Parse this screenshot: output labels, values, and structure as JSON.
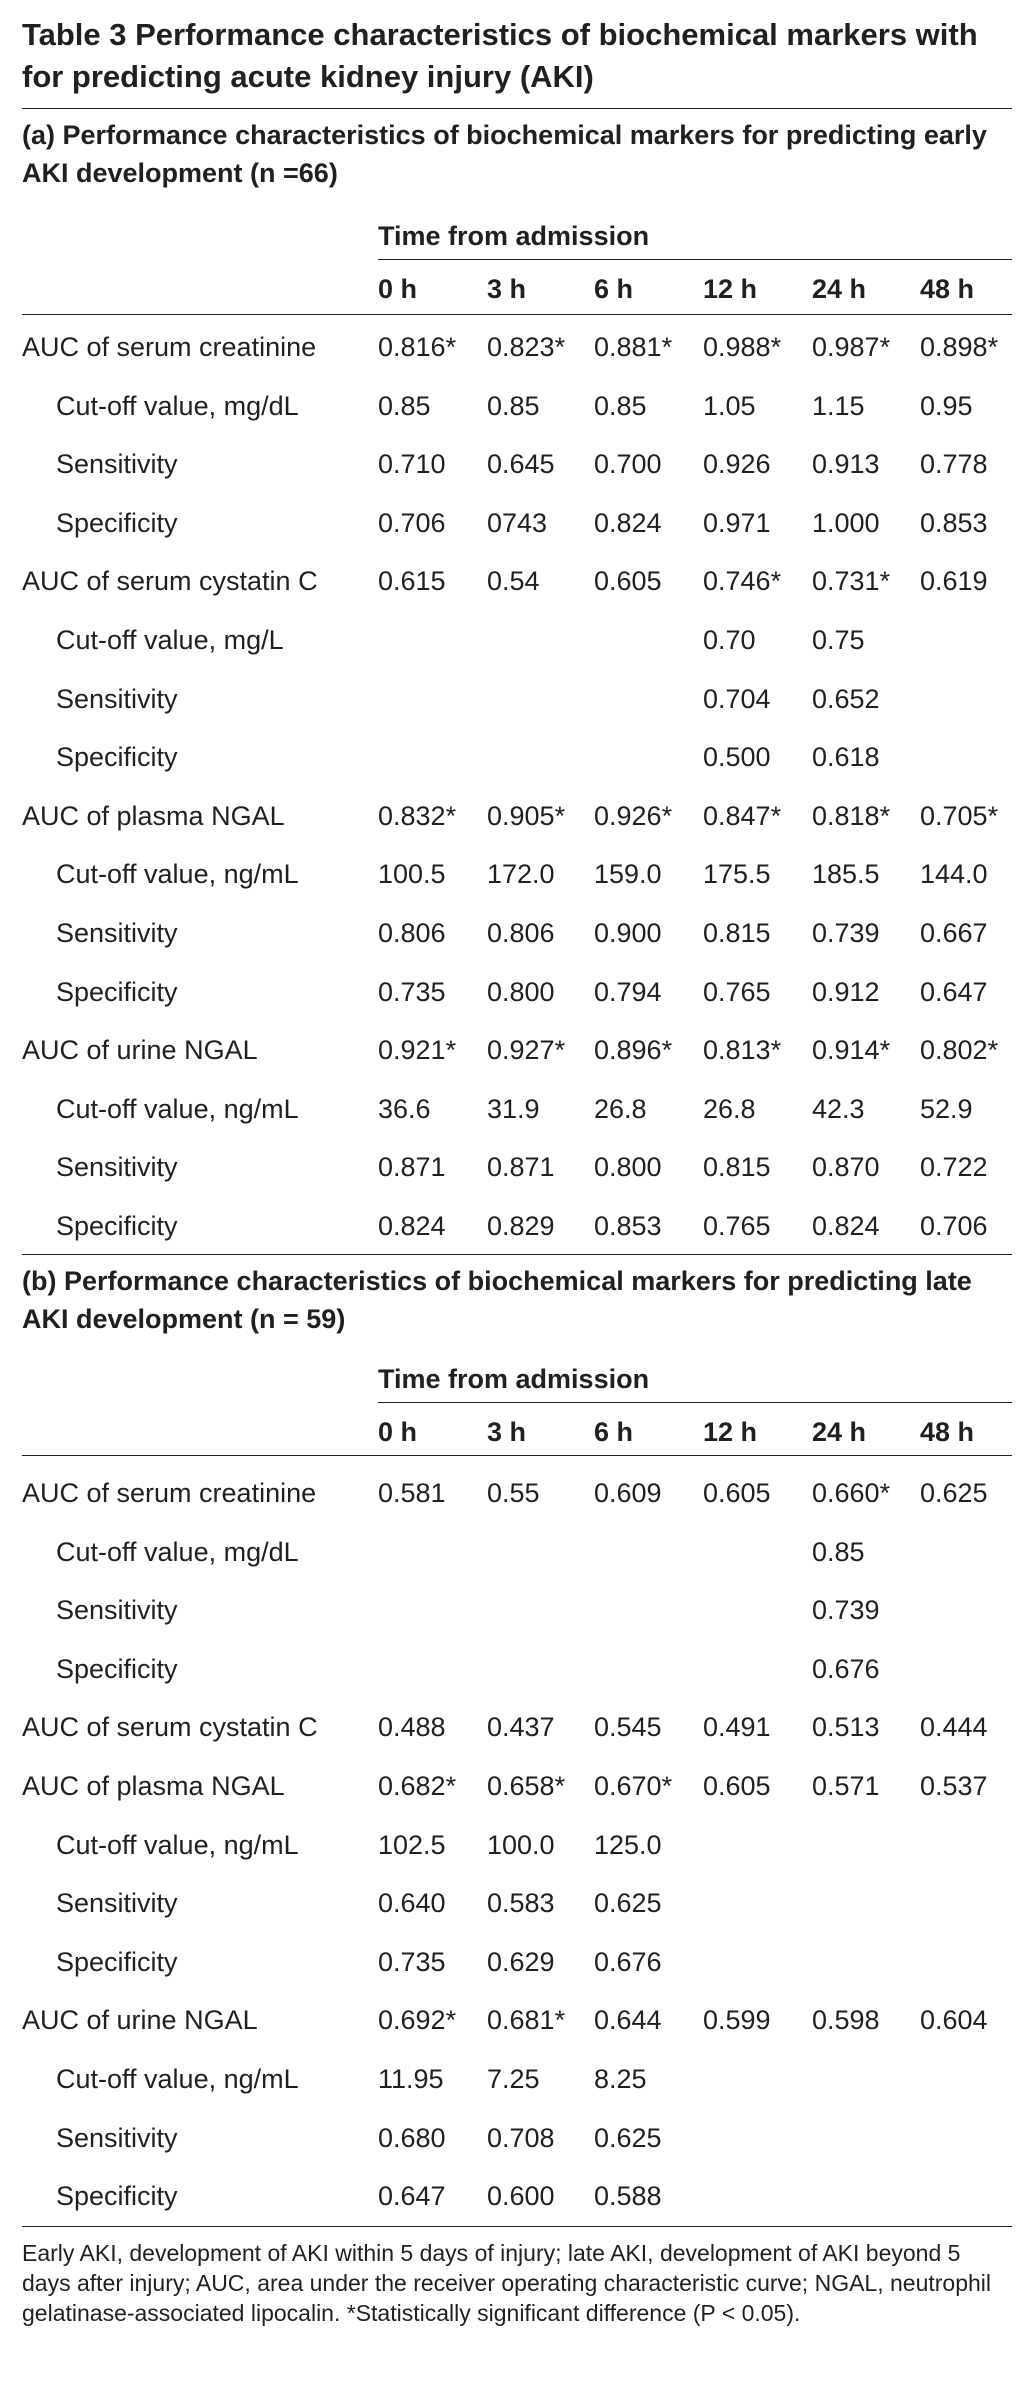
{
  "title": "Table 3 Performance characteristics of biochemical markers with for predicting acute kidney injury (AKI)",
  "time_header": "Time from admission",
  "columns": [
    "0 h",
    "3 h",
    "6 h",
    "12 h",
    "24 h",
    "48 h"
  ],
  "sections": [
    {
      "title": "(a) Performance characteristics of biochemical markers for predicting early AKI development (n =66)",
      "rows": [
        {
          "label": "AUC of serum creatinine",
          "indent": 0,
          "cells": [
            "0.816*",
            "0.823*",
            "0.881*",
            "0.988*",
            "0.987*",
            "0.898*"
          ]
        },
        {
          "label": "Cut-off value, mg/dL",
          "indent": 1,
          "cells": [
            "0.85",
            "0.85",
            "0.85",
            "1.05",
            "1.15",
            "0.95"
          ]
        },
        {
          "label": "Sensitivity",
          "indent": 1,
          "cells": [
            "0.710",
            "0.645",
            "0.700",
            "0.926",
            "0.913",
            "0.778"
          ]
        },
        {
          "label": "Specificity",
          "indent": 1,
          "cells": [
            "0.706",
            "0743",
            "0.824",
            "0.971",
            "1.000",
            "0.853"
          ]
        },
        {
          "label": "AUC of serum cystatin C",
          "indent": 0,
          "cells": [
            "0.615",
            "0.54",
            "0.605",
            "0.746*",
            "0.731*",
            "0.619"
          ]
        },
        {
          "label": "Cut-off value, mg/L",
          "indent": 1,
          "cells": [
            "",
            "",
            "",
            "0.70",
            "0.75",
            ""
          ]
        },
        {
          "label": "Sensitivity",
          "indent": 1,
          "cells": [
            "",
            "",
            "",
            "0.704",
            "0.652",
            ""
          ]
        },
        {
          "label": "Specificity",
          "indent": 1,
          "cells": [
            "",
            "",
            "",
            "0.500",
            "0.618",
            ""
          ]
        },
        {
          "label": "AUC of plasma NGAL",
          "indent": 0,
          "cells": [
            "0.832*",
            "0.905*",
            "0.926*",
            "0.847*",
            "0.818*",
            "0.705*"
          ]
        },
        {
          "label": "Cut-off value, ng/mL",
          "indent": 1,
          "cells": [
            "100.5",
            "172.0",
            "159.0",
            "175.5",
            "185.5",
            "144.0"
          ]
        },
        {
          "label": "Sensitivity",
          "indent": 1,
          "cells": [
            "0.806",
            "0.806",
            "0.900",
            "0.815",
            "0.739",
            "0.667"
          ]
        },
        {
          "label": "Specificity",
          "indent": 1,
          "cells": [
            "0.735",
            "0.800",
            "0.794",
            "0.765",
            "0.912",
            "0.647"
          ]
        },
        {
          "label": "AUC of urine NGAL",
          "indent": 0,
          "cells": [
            "0.921*",
            "0.927*",
            "0.896*",
            "0.813*",
            "0.914*",
            "0.802*"
          ]
        },
        {
          "label": "Cut-off value, ng/mL",
          "indent": 1,
          "cells": [
            "36.6",
            "31.9",
            "26.8",
            "26.8",
            "42.3",
            "52.9"
          ]
        },
        {
          "label": "Sensitivity",
          "indent": 1,
          "cells": [
            "0.871",
            "0.871",
            "0.800",
            "0.815",
            "0.870",
            "0.722"
          ]
        },
        {
          "label": "Specificity",
          "indent": 1,
          "cells": [
            "0.824",
            "0.829",
            "0.853",
            "0.765",
            "0.824",
            "0.706"
          ]
        }
      ]
    },
    {
      "title": "(b) Performance characteristics of biochemical markers for predicting late AKI development (n = 59)",
      "rows": [
        {
          "label": "AUC of serum creatinine",
          "indent": 0,
          "cells": [
            "0.581",
            "0.55",
            "0.609",
            "0.605",
            "0.660*",
            "0.625"
          ]
        },
        {
          "label": "Cut-off value, mg/dL",
          "indent": 1,
          "cells": [
            "",
            "",
            "",
            "",
            "0.85",
            ""
          ]
        },
        {
          "label": "Sensitivity",
          "indent": 1,
          "cells": [
            "",
            "",
            "",
            "",
            "0.739",
            ""
          ]
        },
        {
          "label": "Specificity",
          "indent": 1,
          "cells": [
            "",
            "",
            "",
            "",
            "0.676",
            ""
          ]
        },
        {
          "label": "AUC of serum cystatin C",
          "indent": 0,
          "cells": [
            "0.488",
            "0.437",
            "0.545",
            "0.491",
            "0.513",
            "0.444"
          ]
        },
        {
          "label": "AUC of plasma NGAL",
          "indent": 0,
          "cells": [
            "0.682*",
            "0.658*",
            "0.670*",
            "0.605",
            "0.571",
            "0.537"
          ]
        },
        {
          "label": "Cut-off value, ng/mL",
          "indent": 1,
          "cells": [
            "102.5",
            "100.0",
            "125.0",
            "",
            "",
            ""
          ]
        },
        {
          "label": "Sensitivity",
          "indent": 1,
          "cells": [
            "0.640",
            "0.583",
            "0.625",
            "",
            "",
            ""
          ]
        },
        {
          "label": "Specificity",
          "indent": 1,
          "cells": [
            "0.735",
            "0.629",
            "0.676",
            "",
            "",
            ""
          ]
        },
        {
          "label": "AUC of urine NGAL",
          "indent": 0,
          "cells": [
            "0.692*",
            "0.681*",
            "0.644",
            "0.599",
            "0.598",
            "0.604"
          ]
        },
        {
          "label": "Cut-off value, ng/mL",
          "indent": 1,
          "cells": [
            "11.95",
            "7.25",
            "8.25",
            "",
            "",
            ""
          ]
        },
        {
          "label": "Sensitivity",
          "indent": 1,
          "cells": [
            "0.680",
            "0.708",
            "0.625",
            "",
            "",
            ""
          ]
        },
        {
          "label": "Specificity",
          "indent": 1,
          "cells": [
            "0.647",
            "0.600",
            "0.588",
            "",
            "",
            ""
          ]
        }
      ]
    }
  ],
  "footnote": "Early AKI, development of AKI within 5 days of injury; late AKI, development of AKI beyond 5 days after injury; AUC, area under the receiver operating characteristic curve; NGAL, neutrophil gelatinase-associated lipocalin. *Statistically significant difference (P < 0.05)."
}
